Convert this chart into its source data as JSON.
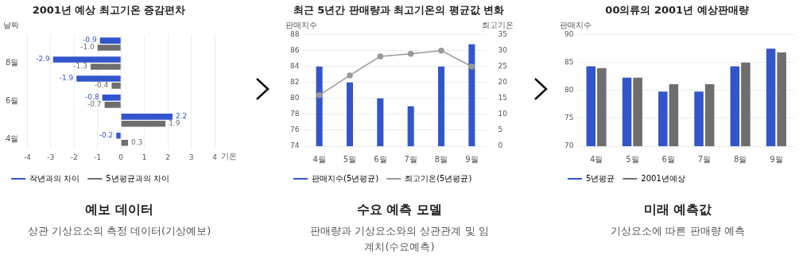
{
  "chart_data": [
    {
      "type": "bar",
      "orientation": "horizontal",
      "title": "2001년 예상 최고기온 증감편차",
      "ylabel": "날짜",
      "xlabel": "기온",
      "categories": [
        null,
        "8월",
        null,
        "6월",
        null,
        "4월"
      ],
      "series": [
        {
          "name": "작년과의 차이",
          "color": "#3355cc",
          "values": [
            -0.9,
            -2.9,
            -1.9,
            -0.8,
            2.2,
            -0.2
          ],
          "value_labels": [
            "-0.9",
            "-2.9",
            "-1.9",
            "-0.8",
            "2.2",
            "-0.2"
          ]
        },
        {
          "name": "5년평균과의 차이",
          "color": "#6e6e6e",
          "values": [
            -1.0,
            -1.3,
            -0.4,
            -0.7,
            1.9,
            0.3
          ],
          "value_labels": [
            "-1.0",
            "-1.3",
            "-0.4",
            "-0.7",
            "1.9",
            "0.3"
          ]
        }
      ],
      "xlim": [
        -4,
        4
      ],
      "xticks": [
        -4,
        -3,
        -2,
        -1,
        0,
        1,
        2,
        3,
        4
      ],
      "grid": "x",
      "legend": "bottom left",
      "annotations": [
        "예보 데이터",
        "상관 기상요소의 측정 데이터(기상예보)"
      ]
    },
    {
      "type": "bar",
      "title": "최근 5년간 판매량과 최고기온의 평균값 변화",
      "ylabel": "판매지수",
      "y2label": "최고기온",
      "categories": [
        "4월",
        "5월",
        "6월",
        "7월",
        "8월",
        "9월"
      ],
      "series": [
        {
          "name": "판매지수(5년평균)",
          "color": "#3355cc",
          "values": [
            84,
            82,
            80,
            79,
            84,
            86.8
          ]
        },
        {
          "name": "최고기온(5년평균)",
          "type": "line",
          "axis": "y2",
          "color": "#999999",
          "values": [
            16,
            22.2,
            28.2,
            29,
            30,
            25
          ]
        }
      ],
      "ylim": [
        74,
        88
      ],
      "yticks": [
        74,
        76,
        78,
        80,
        82,
        84,
        86,
        88
      ],
      "y2lim": [
        0,
        35
      ],
      "y2ticks": [
        0,
        5,
        10,
        15,
        20,
        25,
        30,
        35
      ],
      "grid": "y",
      "legend": "bottom left",
      "marker": "circle",
      "line_style": "solid",
      "annotations": [
        "수요 예측 모델",
        "판매량과 기상요소와의 상관관계 및 임계치(수요예측)"
      ]
    },
    {
      "type": "bar",
      "title": "00의류의 2001년 예상판매량",
      "ylabel": "판매지수",
      "categories": [
        "4월",
        "5월",
        "6월",
        "7월",
        "8월",
        "9월"
      ],
      "series": [
        {
          "name": "5년평균",
          "color": "#3355cc",
          "values": [
            84.3,
            82.3,
            79.8,
            79.8,
            84.3,
            87.5
          ]
        },
        {
          "name": "2001년예상",
          "color": "#6e6e6e",
          "values": [
            84,
            82.3,
            81.1,
            81.1,
            85,
            86.8
          ]
        }
      ],
      "ylim": [
        70,
        90
      ],
      "yticks": [
        70,
        75,
        80,
        85,
        90
      ],
      "grid": "y",
      "legend": "bottom left",
      "annotations": [
        "미래 예측값",
        "기상요소에 따른 판매량 예측"
      ]
    }
  ]
}
